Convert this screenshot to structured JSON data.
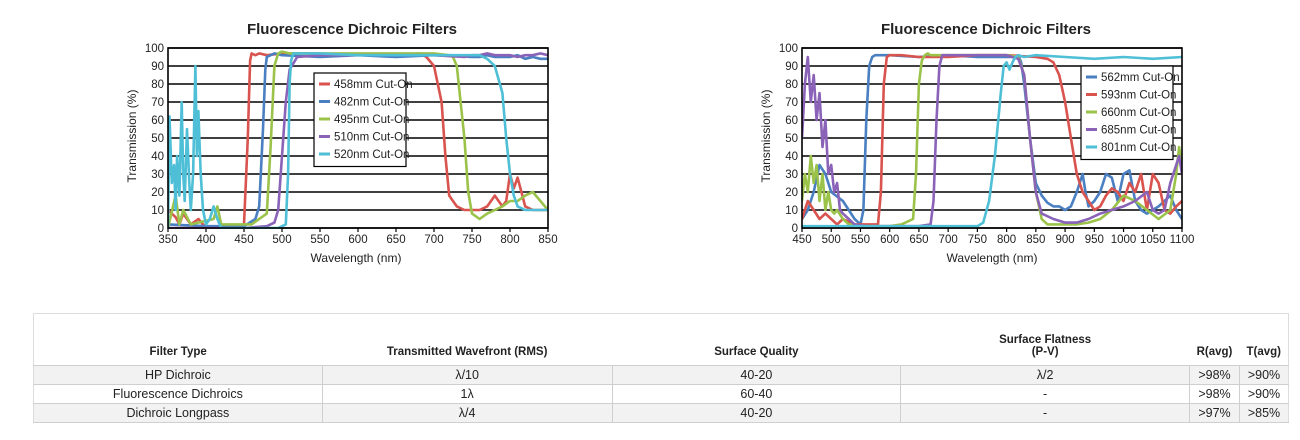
{
  "chart_data": [
    {
      "type": "line",
      "title": "Fluorescence Dichroic Filters",
      "xlabel": "Wavelength (nm)",
      "ylabel": "Transmission (%)",
      "xlim": [
        350,
        850
      ],
      "ylim": [
        0,
        100
      ],
      "xticks": [
        350,
        400,
        450,
        500,
        550,
        600,
        650,
        700,
        750,
        800,
        850
      ],
      "yticks": [
        0,
        10,
        20,
        30,
        40,
        50,
        60,
        70,
        80,
        90,
        100
      ],
      "grid": "horizontal",
      "legend_position": "center",
      "series": [
        {
          "name": "458mm Cut-On",
          "color": "#d9534f",
          "x": [
            350,
            360,
            365,
            370,
            380,
            390,
            400,
            420,
            440,
            450,
            455,
            458,
            460,
            465,
            470,
            480,
            500,
            550,
            600,
            650,
            680,
            690,
            700,
            710,
            715,
            720,
            730,
            740,
            760,
            770,
            780,
            790,
            795,
            800,
            805,
            810,
            815,
            820,
            830,
            840,
            850
          ],
          "y": [
            10,
            6,
            2,
            8,
            2,
            5,
            0,
            0,
            1,
            2,
            50,
            93,
            97,
            96,
            97,
            96,
            97,
            97,
            96,
            96,
            97,
            95,
            90,
            70,
            40,
            18,
            12,
            10,
            10,
            12,
            18,
            12,
            15,
            30,
            22,
            28,
            20,
            12,
            10,
            10,
            10
          ]
        },
        {
          "name": "482nm Cut-On",
          "color": "#4a7fc1",
          "x": [
            350,
            400,
            450,
            465,
            470,
            475,
            478,
            480,
            485,
            490,
            500,
            550,
            600,
            650,
            700,
            750,
            760,
            770,
            780,
            790,
            800,
            810,
            820,
            830,
            840,
            850
          ],
          "y": [
            2,
            1,
            1,
            5,
            12,
            55,
            88,
            95,
            96,
            97,
            96,
            95,
            96,
            95,
            96,
            95,
            95,
            96,
            95,
            95,
            95,
            96,
            94,
            95,
            94,
            94
          ]
        },
        {
          "name": "495nm Cut-On",
          "color": "#9bc34a",
          "x": [
            350,
            360,
            365,
            370,
            380,
            410,
            415,
            420,
            440,
            460,
            480,
            485,
            490,
            495,
            500,
            510,
            550,
            600,
            650,
            700,
            720,
            725,
            730,
            740,
            745,
            750,
            760,
            770,
            780,
            790,
            800,
            810,
            820,
            830,
            840,
            850
          ],
          "y": [
            0,
            18,
            2,
            10,
            2,
            5,
            12,
            2,
            2,
            2,
            8,
            45,
            90,
            97,
            98,
            97,
            97,
            97,
            97,
            97,
            96,
            95,
            90,
            50,
            20,
            8,
            5,
            8,
            10,
            12,
            15,
            15,
            18,
            20,
            15,
            10
          ]
        },
        {
          "name": "510nm Cut-On",
          "color": "#8a63b8",
          "x": [
            350,
            400,
            450,
            480,
            490,
            495,
            500,
            505,
            510,
            520,
            550,
            600,
            650,
            700,
            740,
            750,
            760,
            770,
            780,
            790,
            800,
            810,
            820,
            830,
            840,
            850
          ],
          "y": [
            0,
            0,
            0,
            1,
            3,
            10,
            40,
            70,
            88,
            95,
            96,
            96,
            96,
            96,
            95,
            96,
            96,
            97,
            96,
            96,
            96,
            95,
            96,
            96,
            97,
            96
          ]
        },
        {
          "name": "520nm Cut-On",
          "color": "#4ebfd6",
          "x": [
            350,
            352,
            355,
            358,
            360,
            362,
            365,
            368,
            370,
            372,
            375,
            378,
            380,
            383,
            386,
            388,
            390,
            393,
            396,
            400,
            405,
            410,
            415,
            420,
            430,
            440,
            460,
            480,
            495,
            505,
            508,
            510,
            512,
            515,
            520,
            550,
            600,
            650,
            700,
            750,
            760,
            770,
            780,
            790,
            795,
            800,
            805,
            810,
            820,
            830,
            840,
            850
          ],
          "y": [
            0,
            62,
            25,
            35,
            10,
            40,
            18,
            70,
            30,
            15,
            55,
            25,
            10,
            30,
            90,
            40,
            65,
            30,
            10,
            2,
            5,
            12,
            5,
            0,
            0,
            0,
            0,
            0,
            0,
            2,
            30,
            80,
            93,
            97,
            97,
            97,
            96,
            96,
            96,
            96,
            96,
            94,
            90,
            75,
            50,
            30,
            18,
            12,
            10,
            10,
            10,
            10
          ]
        }
      ]
    },
    {
      "type": "line",
      "title": "Fluorescence Dichroic Filters",
      "xlabel": "Wavelength (nm)",
      "ylabel": "Transmission (%)",
      "xlim": [
        450,
        1100
      ],
      "ylim": [
        0,
        100
      ],
      "xticks": [
        450,
        500,
        550,
        600,
        650,
        700,
        750,
        800,
        850,
        900,
        950,
        1000,
        1050,
        1100
      ],
      "yticks": [
        0,
        10,
        20,
        30,
        40,
        50,
        60,
        70,
        80,
        90,
        100
      ],
      "grid": "horizontal",
      "legend_position": "right",
      "series": [
        {
          "name": "562mm Cut-On",
          "color": "#4a7fc1",
          "x": [
            450,
            460,
            470,
            480,
            490,
            500,
            520,
            540,
            550,
            555,
            560,
            565,
            570,
            575,
            580,
            600,
            650,
            700,
            750,
            800,
            810,
            820,
            825,
            830,
            840,
            850,
            860,
            870,
            880,
            890,
            900,
            910,
            920,
            930,
            935,
            940,
            950,
            960,
            970,
            980,
            990,
            1000,
            1010,
            1020,
            1030,
            1040,
            1050,
            1060,
            1070,
            1080,
            1090,
            1100
          ],
          "y": [
            5,
            10,
            20,
            35,
            30,
            20,
            15,
            5,
            2,
            10,
            60,
            90,
            95,
            96,
            96,
            96,
            95,
            96,
            95,
            95,
            95,
            96,
            92,
            80,
            50,
            25,
            18,
            14,
            12,
            12,
            10,
            12,
            20,
            30,
            20,
            12,
            15,
            20,
            30,
            28,
            15,
            30,
            32,
            15,
            10,
            8,
            10,
            12,
            15,
            18,
            10,
            5
          ]
        },
        {
          "name": "593nm Cut-On",
          "color": "#d9534f",
          "x": [
            450,
            460,
            470,
            480,
            490,
            500,
            510,
            520,
            540,
            560,
            580,
            585,
            590,
            595,
            600,
            620,
            650,
            700,
            750,
            800,
            850,
            870,
            880,
            890,
            900,
            910,
            920,
            930,
            940,
            950,
            960,
            970,
            980,
            990,
            1000,
            1010,
            1020,
            1030,
            1040,
            1050,
            1060,
            1070,
            1080,
            1090,
            1100
          ],
          "y": [
            5,
            15,
            10,
            5,
            8,
            5,
            2,
            5,
            2,
            2,
            2,
            20,
            80,
            95,
            96,
            96,
            95,
            95,
            96,
            96,
            95,
            94,
            92,
            85,
            70,
            50,
            30,
            20,
            15,
            10,
            12,
            18,
            22,
            20,
            15,
            25,
            20,
            30,
            10,
            30,
            25,
            10,
            8,
            12,
            15
          ]
        },
        {
          "name": "660nm Cut-On",
          "color": "#9bc34a",
          "x": [
            450,
            455,
            460,
            465,
            470,
            475,
            480,
            485,
            490,
            495,
            500,
            505,
            510,
            520,
            530,
            540,
            560,
            580,
            600,
            620,
            640,
            645,
            650,
            655,
            660,
            665,
            670,
            680,
            700,
            750,
            800,
            820,
            830,
            840,
            850,
            860,
            870,
            880,
            900,
            920,
            940,
            960,
            980,
            1000,
            1020,
            1040,
            1060,
            1080,
            1090,
            1095,
            1100
          ],
          "y": [
            15,
            30,
            20,
            40,
            25,
            35,
            15,
            30,
            10,
            20,
            10,
            8,
            10,
            5,
            2,
            2,
            1,
            1,
            1,
            2,
            5,
            30,
            80,
            93,
            96,
            97,
            96,
            96,
            96,
            96,
            96,
            95,
            85,
            50,
            20,
            5,
            2,
            2,
            2,
            2,
            3,
            5,
            10,
            18,
            15,
            10,
            5,
            10,
            30,
            45,
            35
          ]
        },
        {
          "name": "685nm Cut-On",
          "color": "#8a63b8",
          "x": [
            450,
            455,
            460,
            465,
            470,
            475,
            480,
            485,
            490,
            495,
            500,
            505,
            510,
            515,
            520,
            530,
            540,
            560,
            600,
            650,
            670,
            675,
            680,
            685,
            690,
            700,
            750,
            800,
            820,
            830,
            840,
            850,
            860,
            880,
            900,
            920,
            940,
            960,
            980,
            1000,
            1020,
            1040,
            1050,
            1060,
            1070,
            1080,
            1090,
            1095,
            1100
          ],
          "y": [
            50,
            80,
            95,
            70,
            85,
            60,
            75,
            45,
            60,
            30,
            35,
            20,
            25,
            10,
            8,
            5,
            2,
            1,
            1,
            1,
            2,
            15,
            60,
            90,
            96,
            96,
            96,
            96,
            94,
            85,
            50,
            20,
            8,
            5,
            3,
            3,
            5,
            8,
            10,
            12,
            15,
            20,
            10,
            8,
            10,
            25,
            35,
            40,
            30
          ]
        },
        {
          "name": "801nm Cut-On",
          "color": "#4ebfd6",
          "x": [
            450,
            500,
            600,
            700,
            750,
            760,
            770,
            780,
            790,
            795,
            800,
            805,
            810,
            815,
            820,
            830,
            850,
            900,
            950,
            1000,
            1050,
            1100
          ],
          "y": [
            1,
            1,
            1,
            1,
            1,
            3,
            15,
            40,
            75,
            90,
            92,
            88,
            92,
            95,
            96,
            95,
            96,
            95,
            94,
            95,
            94,
            95
          ]
        }
      ]
    }
  ],
  "table": {
    "headers": {
      "filter_type": "Filter Type",
      "wavefront": "Transmitted Wavefront (RMS)",
      "surface_quality": "Surface Quality",
      "flatness_line1": "Surface Flatness",
      "flatness_line2": "(P-V)",
      "ravg": "R(avg)",
      "tavg": "T(avg)"
    },
    "rows": [
      {
        "filter_type": "HP Dichroic",
        "wavefront": "λ/10",
        "surface_quality": "40-20",
        "flatness": "λ/2",
        "ravg": ">98%",
        "tavg": ">90%"
      },
      {
        "filter_type": "Fluorescence Dichroics",
        "wavefront": "1λ",
        "surface_quality": "60-40",
        "flatness": "-",
        "ravg": ">98%",
        "tavg": ">90%"
      },
      {
        "filter_type": "Dichroic Longpass",
        "wavefront": "λ/4",
        "surface_quality": "40-20",
        "flatness": "-",
        "ravg": ">97%",
        "tavg": ">85%"
      }
    ]
  }
}
